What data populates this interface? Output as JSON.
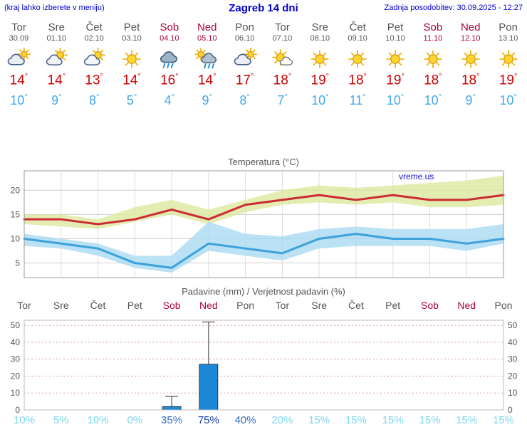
{
  "header": {
    "left_note": "(kraj lahko izberete v meniju)",
    "title": "Zagreb 14 dni",
    "updated": "Zadnja posodobitev: 30.09.2025 - 12:27"
  },
  "watermark": "vreme.us",
  "forecast": {
    "days": [
      {
        "name": "Tor",
        "date": "30.09",
        "icon": "cloudy",
        "tmax": 14,
        "tmin": 10,
        "weekend": false
      },
      {
        "name": "Sre",
        "date": "01.10",
        "icon": "partly-cloudy",
        "tmax": 14,
        "tmin": 9,
        "weekend": false
      },
      {
        "name": "Čet",
        "date": "02.10",
        "icon": "partly-cloudy",
        "tmax": 13,
        "tmin": 8,
        "weekend": false
      },
      {
        "name": "Pet",
        "date": "03.10",
        "icon": "sunny",
        "tmax": 14,
        "tmin": 5,
        "weekend": false
      },
      {
        "name": "Sob",
        "date": "04.10",
        "icon": "rain",
        "tmax": 16,
        "tmin": 4,
        "weekend": true
      },
      {
        "name": "Ned",
        "date": "05.10",
        "icon": "rain-sun",
        "tmax": 14,
        "tmin": 9,
        "weekend": true
      },
      {
        "name": "Pon",
        "date": "06.10",
        "icon": "cloudy",
        "tmax": 17,
        "tmin": 8,
        "weekend": false
      },
      {
        "name": "Tor",
        "date": "07.10",
        "icon": "mostly-sunny",
        "tmax": 18,
        "tmin": 7,
        "weekend": false
      },
      {
        "name": "Sre",
        "date": "08.10",
        "icon": "sunny",
        "tmax": 19,
        "tmin": 10,
        "weekend": false
      },
      {
        "name": "Čet",
        "date": "09.10",
        "icon": "sunny",
        "tmax": 18,
        "tmin": 11,
        "weekend": false
      },
      {
        "name": "Pet",
        "date": "10.10",
        "icon": "sunny",
        "tmax": 19,
        "tmin": 10,
        "weekend": false
      },
      {
        "name": "Sob",
        "date": "11.10",
        "icon": "sunny",
        "tmax": 18,
        "tmin": 10,
        "weekend": true
      },
      {
        "name": "Ned",
        "date": "12.10",
        "icon": "sunny",
        "tmax": 18,
        "tmin": 9,
        "weekend": true
      },
      {
        "name": "Pon",
        "date": "13.10",
        "icon": "sunny",
        "tmax": 19,
        "tmin": 10,
        "weekend": false
      }
    ]
  },
  "chart_data": [
    {
      "type": "line",
      "title": "Temperatura (°C)",
      "categories": [
        "Tor",
        "Sre",
        "Čet",
        "Pet",
        "Sob",
        "Ned",
        "Pon",
        "Tor",
        "Sre",
        "Čet",
        "Pet",
        "Sob",
        "Ned",
        "Pon"
      ],
      "ylim": [
        2,
        24
      ],
      "yticks": [
        5,
        10,
        15,
        20
      ],
      "series": [
        {
          "name": "max temperature",
          "color": "#CC2B33",
          "band_color": "#DCE89B",
          "values": [
            14,
            14,
            13,
            14,
            16,
            14,
            17,
            18,
            19,
            18,
            19,
            18,
            18,
            19
          ],
          "band_upper": [
            15,
            15,
            14,
            16.5,
            18,
            16,
            18,
            20,
            21,
            20.5,
            21,
            21.5,
            22,
            23
          ],
          "band_lower": [
            13,
            12.5,
            12,
            13.5,
            15,
            13,
            15.5,
            17,
            17.5,
            17,
            17.5,
            16.5,
            16.5,
            17
          ]
        },
        {
          "name": "min temperature",
          "color": "#3BA2DC",
          "band_color": "#A8D9F2",
          "values": [
            10,
            9,
            8,
            5,
            4,
            9,
            8,
            7,
            10,
            11,
            10,
            10,
            9,
            10
          ],
          "band_upper": [
            11,
            10,
            9,
            6.5,
            6.5,
            13.5,
            11,
            10.5,
            12,
            12.5,
            12,
            12,
            12,
            13
          ],
          "band_lower": [
            8.5,
            8,
            6.5,
            4,
            3,
            7.5,
            6.5,
            5.5,
            8,
            8.5,
            8.5,
            8.5,
            7.5,
            9
          ]
        }
      ]
    },
    {
      "type": "bar",
      "title": "Padavine (mm) / Verjetnost padavin (%)",
      "categories": [
        "Tor",
        "Sre",
        "Čet",
        "Pet",
        "Sob",
        "Ned",
        "Pon",
        "Tor",
        "Sre",
        "Čet",
        "Pet",
        "Sob",
        "Ned",
        "Pon"
      ],
      "weekend_flags": [
        false,
        false,
        false,
        false,
        true,
        true,
        false,
        false,
        false,
        false,
        false,
        true,
        true,
        false
      ],
      "values": [
        0,
        0,
        0,
        0,
        2,
        27,
        0,
        0,
        0,
        0,
        0,
        0,
        0,
        0
      ],
      "whisker_max": [
        0,
        0,
        0,
        0,
        8,
        52,
        0,
        0,
        0,
        0,
        0,
        0,
        0,
        0
      ],
      "probabilities": [
        10,
        5,
        10,
        0,
        35,
        75,
        40,
        20,
        15,
        15,
        15,
        15,
        15,
        15
      ],
      "ylim": [
        0,
        53
      ],
      "yticks": [
        0,
        10,
        20,
        30,
        40,
        50
      ]
    }
  ],
  "colors": {
    "header_blue": "#0000CC",
    "weekday": "#555555",
    "weekend": "#AA0040",
    "tmax": "#CC0000",
    "tmin": "#42A8E8",
    "precip_bar": "#1E88D8",
    "prob_low": "#7CD6F0",
    "prob_mid": "#3070C8",
    "prob_high": "#1A3CB0",
    "grid": "#CCCCCC",
    "precip_grid": "#D89898"
  }
}
